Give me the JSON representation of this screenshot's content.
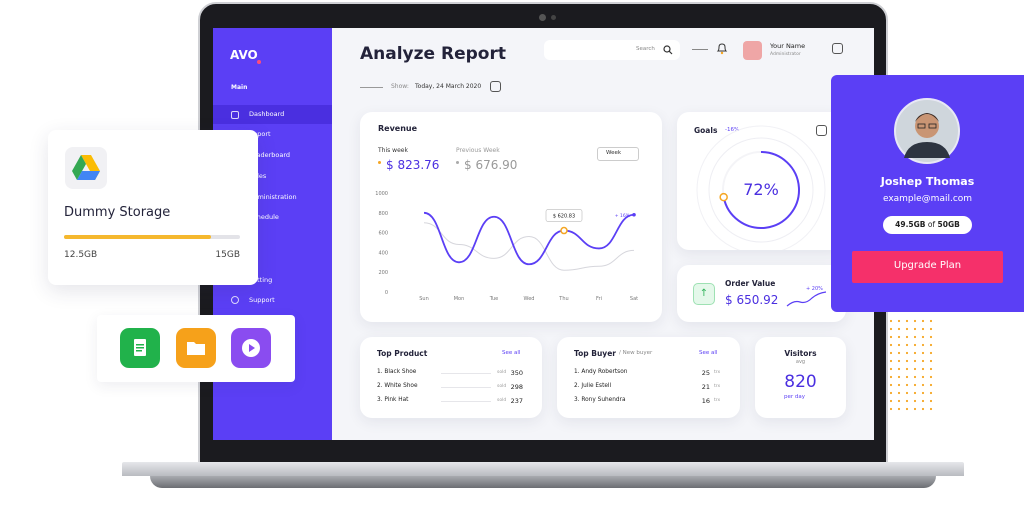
{
  "sidebar": {
    "logo": "AVO",
    "section": "Main",
    "menu": [
      "Dashboard",
      "Report",
      "Leaderboard",
      "Sales",
      "Administration",
      "Schedule",
      "Setting",
      "Support"
    ]
  },
  "header": {
    "title": "Analyze Report",
    "search": "Search",
    "user_name": "Your Name",
    "user_role": "Administrator",
    "show_label": "Show:",
    "date": "Today, 24 March 2020"
  },
  "revenue": {
    "title": "Revenue",
    "this_week_value": "$ 823.76",
    "previous_week_value": "$ 676.90",
    "period": "Week",
    "chart": {
      "type": "line",
      "categories": [
        "Sun",
        "Mon",
        "Tue",
        "Wed",
        "Thu",
        "Fri",
        "Sat"
      ],
      "series": [
        {
          "name": "This week",
          "color": "#5b3ff5",
          "values": [
            800,
            300,
            760,
            280,
            620.83,
            440,
            780
          ],
          "value_labels": [
            null,
            null,
            null,
            null,
            "$ 620.83",
            null,
            null
          ]
        },
        {
          "name": "Previous Week",
          "color": "#d6d6dc",
          "values": [
            700,
            480,
            340,
            560,
            220,
            260,
            420
          ]
        }
      ],
      "annotation": "+ 16%",
      "ylim": [
        0,
        1000
      ],
      "yticks": [
        0,
        200,
        400,
        600,
        800,
        1000
      ],
      "grid": false
    }
  },
  "goals": {
    "title": "Goals",
    "change": "-16%",
    "value": 72,
    "value_label": "72%"
  },
  "order_value": {
    "title": "Order Value",
    "value": "$ 650.92",
    "change": "+ 20%"
  },
  "top_product": {
    "title": "Top Product",
    "see_all": "See all",
    "unit": "sold",
    "rows": [
      [
        "1. Black Shoe",
        350
      ],
      [
        "2. White Shoe",
        298
      ],
      [
        "3. Pink Hat",
        237
      ]
    ]
  },
  "top_buyer": {
    "title": "Top Buyer",
    "subtitle": "/ New buyer",
    "see_all": "See all",
    "unit": "trx",
    "rows": [
      [
        "1. Andy Robertson",
        25
      ],
      [
        "2. Julie Estell",
        21
      ],
      [
        "3. Rony Suhendra",
        16
      ]
    ]
  },
  "visitors": {
    "title": "Visitors",
    "subtitle": "avg",
    "value": 820,
    "period": "per day"
  },
  "storage": {
    "title": "Dummy Storage",
    "used": 12.5,
    "used_label": "12.5GB",
    "total": 15,
    "total_label": "15GB"
  },
  "profile": {
    "name": "Joshep Thomas",
    "email": "example@mail.com",
    "used": "49.5GB",
    "of": "of",
    "total": "50GB",
    "button": "Upgrade Plan"
  }
}
